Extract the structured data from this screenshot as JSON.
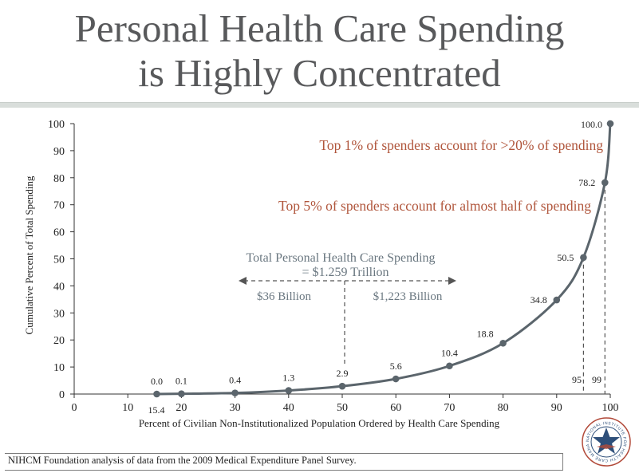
{
  "slide": {
    "title_line1": "Personal Health Care Spending",
    "title_line2": "is Highly Concentrated",
    "footer": "NIHCM Foundation analysis of data from the 2009 Medical Expenditure Panel Survey.",
    "logo_text": "NATIONAL INSTITUTE FOR HEALTH CARE MANAGEMENT"
  },
  "chart_data": {
    "type": "line",
    "xlabel": "Percent of Civilian Non-Institutionalized Population Ordered by Health Care Spending",
    "ylabel": "Cumulative Percent of Total Spending",
    "xlim": [
      0,
      100
    ],
    "ylim": [
      0,
      100
    ],
    "xticks": [
      0,
      10,
      20,
      30,
      40,
      50,
      60,
      70,
      80,
      90,
      100
    ],
    "yticks": [
      0,
      10,
      20,
      30,
      40,
      50,
      60,
      70,
      80,
      90,
      100
    ],
    "grid": false,
    "series": [
      {
        "points": [
          {
            "x": 15.4,
            "y": 0.0,
            "label": "0.0"
          },
          {
            "x": 20,
            "y": 0.1,
            "label": "0.1"
          },
          {
            "x": 30,
            "y": 0.4,
            "label": "0.4"
          },
          {
            "x": 40,
            "y": 1.3,
            "label": "1.3"
          },
          {
            "x": 50,
            "y": 2.9,
            "label": "2.9"
          },
          {
            "x": 60,
            "y": 5.6,
            "label": "5.6"
          },
          {
            "x": 70,
            "y": 10.4,
            "label": "10.4"
          },
          {
            "x": 80,
            "y": 18.8,
            "label": "18.8"
          },
          {
            "x": 90,
            "y": 34.8,
            "label": "34.8"
          },
          {
            "x": 95,
            "y": 50.5,
            "label": "50.5"
          },
          {
            "x": 99,
            "y": 78.2,
            "label": "78.2"
          },
          {
            "x": 100,
            "y": 100.0,
            "label": "100.0"
          }
        ]
      }
    ],
    "annotations": {
      "top1": "Top 1% of spenders account for >20% of spending",
      "top5": "Top 5% of spenders account for almost half of spending",
      "total_line1": "Total Personal Health Care Spending",
      "total_line2": "= $1.259 Trillion",
      "left_amount": "$36 Billion",
      "right_amount": "$1,223 Billion",
      "marker_x_label": "15.4",
      "marker_95": "95",
      "marker_99": "99"
    },
    "colors": {
      "line": "#5b656c",
      "highlight_text": "#b0553b",
      "note_text": "#6a7780",
      "axis": "#333333"
    }
  }
}
